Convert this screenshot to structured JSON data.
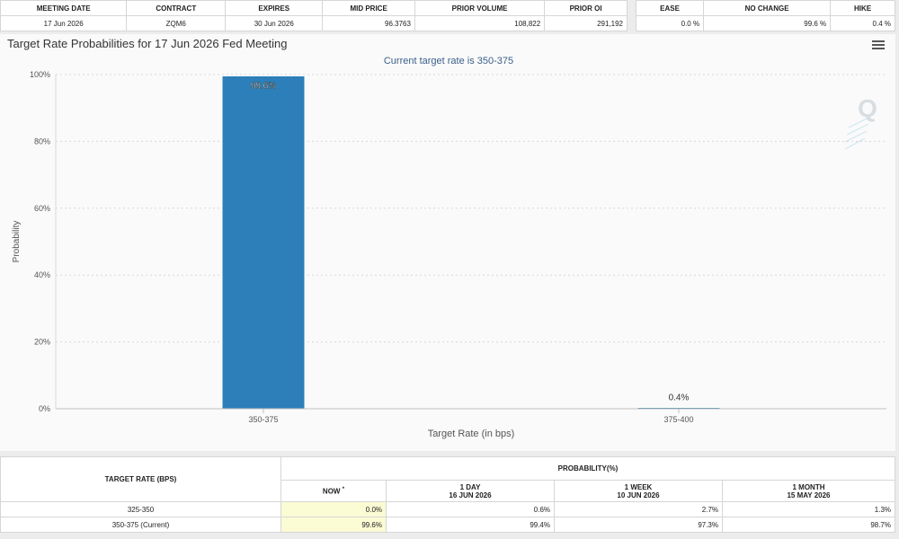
{
  "meeting_table": {
    "headers": [
      "MEETING DATE",
      "CONTRACT",
      "EXPIRES",
      "MID PRICE",
      "PRIOR VOLUME",
      "PRIOR OI"
    ],
    "row": [
      "17 Jun 2026",
      "ZQM6",
      "30 Jun 2026",
      "96.3763",
      "108,822",
      "291,192"
    ]
  },
  "prob_table": {
    "headers": [
      "EASE",
      "NO CHANGE",
      "HIKE"
    ],
    "row": [
      "0.0 %",
      "99.6 %",
      "0.4 %"
    ]
  },
  "chart": {
    "title": "Target Rate Probabilities for 17 Jun 2026 Fed Meeting",
    "subtitle": "Current target rate is 350-375",
    "menu_icon": "hamburger-menu-icon",
    "watermark_icon": "quikstrike-q-logo-icon",
    "bar_color": "#2c7fb8"
  },
  "chart_data": {
    "type": "bar",
    "title": "Target Rate Probabilities for 17 Jun 2026 Fed Meeting",
    "subtitle": "Current target rate is 350-375",
    "categories": [
      "350-375",
      "375-400"
    ],
    "values": [
      99.6,
      0.4
    ],
    "data_labels": [
      "99.6%",
      "0.4%"
    ],
    "xlabel": "Target Rate (in bps)",
    "ylabel": "Probability",
    "ylim": [
      0,
      100
    ],
    "yticks": [
      "0%",
      "20%",
      "40%",
      "60%",
      "80%",
      "100%"
    ],
    "grid": true,
    "legend": "none"
  },
  "bottom_table": {
    "rate_header": "TARGET RATE (BPS)",
    "prob_header": "PROBABILITY(%)",
    "cols": [
      {
        "label": "NOW",
        "mark": "*",
        "date": ""
      },
      {
        "label": "1 DAY",
        "mark": "",
        "date": "16 JUN 2026"
      },
      {
        "label": "1 WEEK",
        "mark": "",
        "date": "10 JUN 2026"
      },
      {
        "label": "1 MONTH",
        "mark": "",
        "date": "15 MAY 2026"
      }
    ],
    "rows": [
      {
        "rate": "325-350",
        "values": [
          "0.0%",
          "0.6%",
          "2.7%",
          "1.3%"
        ]
      },
      {
        "rate": "350-375 (Current)",
        "values": [
          "99.6%",
          "99.4%",
          "97.3%",
          "98.7%"
        ]
      }
    ]
  }
}
